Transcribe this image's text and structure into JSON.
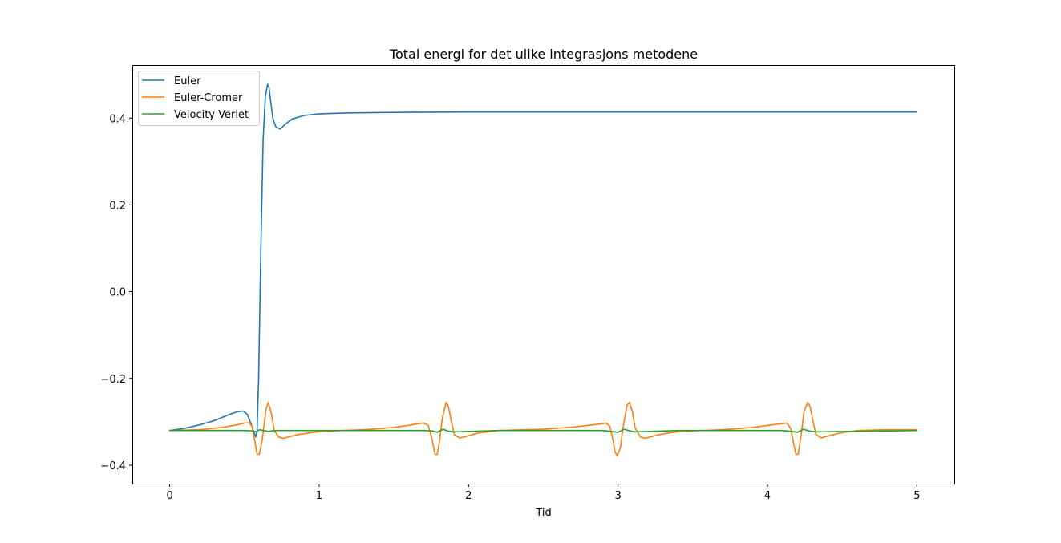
{
  "chart_data": {
    "type": "line",
    "title": "Total energi for det ulike integrasjons metodene",
    "xlabel": "Tid",
    "ylabel": "",
    "xlim": [
      -0.25,
      5.25
    ],
    "ylim": [
      -0.4425,
      0.5225
    ],
    "xticks": [
      0,
      1,
      2,
      3,
      4,
      5
    ],
    "xtick_labels": [
      "0",
      "1",
      "2",
      "3",
      "4",
      "5"
    ],
    "yticks": [
      -0.4,
      -0.2,
      0.0,
      0.2,
      0.4
    ],
    "ytick_labels": [
      "−0.4",
      "−0.2",
      "0.0",
      "0.2",
      "0.4"
    ],
    "grid": false,
    "legend_position": "top-left",
    "series": [
      {
        "name": "Euler",
        "color": "#1f77b4",
        "x": [
          0,
          0.1,
          0.2,
          0.3,
          0.35,
          0.4,
          0.45,
          0.49,
          0.52,
          0.55,
          0.575,
          0.585,
          0.595,
          0.61,
          0.625,
          0.64,
          0.655,
          0.665,
          0.675,
          0.69,
          0.71,
          0.74,
          0.77,
          0.82,
          0.9,
          1.0,
          1.2,
          1.5,
          2,
          3,
          4,
          5
        ],
        "y": [
          -0.32,
          -0.315,
          -0.307,
          -0.297,
          -0.29,
          -0.283,
          -0.277,
          -0.275,
          -0.283,
          -0.31,
          -0.335,
          -0.32,
          -0.2,
          0.1,
          0.35,
          0.45,
          0.478,
          0.47,
          0.44,
          0.4,
          0.38,
          0.375,
          0.385,
          0.398,
          0.406,
          0.41,
          0.412,
          0.413,
          0.414,
          0.414,
          0.414,
          0.414
        ]
      },
      {
        "name": "Euler-Cromer",
        "color": "#ff7f0e",
        "x": [
          0,
          0.2,
          0.35,
          0.45,
          0.5,
          0.53,
          0.55,
          0.57,
          0.585,
          0.6,
          0.62,
          0.645,
          0.66,
          0.68,
          0.7,
          0.73,
          0.76,
          0.85,
          1.0,
          1.3,
          1.5,
          1.6,
          1.65,
          1.7,
          1.73,
          1.755,
          1.775,
          1.79,
          1.805,
          1.825,
          1.85,
          1.865,
          1.885,
          1.905,
          1.94,
          1.97,
          2.06,
          2.2,
          2.5,
          2.7,
          2.83,
          2.88,
          2.92,
          2.945,
          2.965,
          2.98,
          2.995,
          3.015,
          3.035,
          3.06,
          3.075,
          3.095,
          3.115,
          3.15,
          3.18,
          3.27,
          3.4,
          3.7,
          3.9,
          4.03,
          4.08,
          4.13,
          4.155,
          4.175,
          4.19,
          4.205,
          4.225,
          4.245,
          4.27,
          4.285,
          4.305,
          4.325,
          4.36,
          4.39,
          4.48,
          4.6,
          4.8,
          5.0
        ],
        "y": [
          -0.32,
          -0.318,
          -0.313,
          -0.307,
          -0.303,
          -0.302,
          -0.31,
          -0.345,
          -0.375,
          -0.375,
          -0.34,
          -0.27,
          -0.255,
          -0.28,
          -0.32,
          -0.335,
          -0.338,
          -0.33,
          -0.322,
          -0.318,
          -0.313,
          -0.308,
          -0.305,
          -0.303,
          -0.308,
          -0.34,
          -0.375,
          -0.375,
          -0.345,
          -0.29,
          -0.255,
          -0.265,
          -0.3,
          -0.33,
          -0.337,
          -0.335,
          -0.326,
          -0.32,
          -0.317,
          -0.312,
          -0.307,
          -0.305,
          -0.303,
          -0.31,
          -0.34,
          -0.37,
          -0.378,
          -0.36,
          -0.31,
          -0.262,
          -0.255,
          -0.275,
          -0.315,
          -0.335,
          -0.338,
          -0.33,
          -0.322,
          -0.318,
          -0.313,
          -0.307,
          -0.305,
          -0.303,
          -0.315,
          -0.35,
          -0.375,
          -0.375,
          -0.33,
          -0.275,
          -0.255,
          -0.265,
          -0.3,
          -0.33,
          -0.337,
          -0.334,
          -0.326,
          -0.32,
          -0.318,
          -0.318
        ]
      },
      {
        "name": "Velocity Verlet",
        "color": "#2ca02c",
        "x": [
          0,
          0.5,
          0.56,
          0.58,
          0.6,
          0.63,
          0.66,
          0.7,
          1.0,
          1.7,
          1.76,
          1.79,
          1.83,
          1.86,
          1.9,
          2.2,
          2.9,
          2.95,
          3.0,
          3.04,
          3.07,
          3.11,
          3.4,
          4.1,
          4.16,
          4.2,
          4.24,
          4.28,
          4.32,
          5.0
        ],
        "y": [
          -0.32,
          -0.32,
          -0.321,
          -0.323,
          -0.318,
          -0.32,
          -0.322,
          -0.32,
          -0.32,
          -0.32,
          -0.321,
          -0.324,
          -0.317,
          -0.321,
          -0.323,
          -0.32,
          -0.32,
          -0.322,
          -0.324,
          -0.317,
          -0.32,
          -0.323,
          -0.32,
          -0.32,
          -0.322,
          -0.324,
          -0.317,
          -0.321,
          -0.323,
          -0.32
        ]
      }
    ]
  }
}
